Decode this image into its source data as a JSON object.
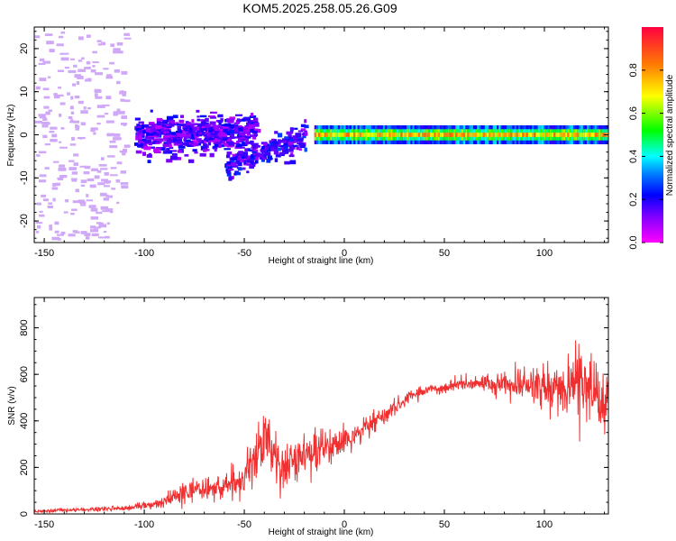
{
  "title": "KOM5.2025.258.05.26.G09",
  "chart_data": [
    {
      "type": "heatmap",
      "xlabel": "Height of straight line (km)",
      "ylabel": "Frequency (Hz)",
      "xlim": [
        -155,
        132
      ],
      "ylim": [
        -25,
        25
      ],
      "xticks": [
        -150,
        -100,
        -50,
        0,
        50,
        100
      ],
      "yticks": [
        -20,
        -10,
        0,
        10,
        20
      ],
      "colorbar": {
        "label": "Normalized spectral amplitude",
        "range": [
          0,
          1
        ],
        "ticks": [
          0.0,
          0.2,
          0.4,
          0.6,
          0.8
        ],
        "colormap": [
          "#ff00ff",
          "#8000ff",
          "#0000ff",
          "#00ffff",
          "#00ff00",
          "#ffff00",
          "#ff8000",
          "#ff0000"
        ]
      },
      "features": [
        {
          "x_range": [
            -155,
            -110
          ],
          "freq_range": [
            -24,
            24
          ],
          "amplitude": 0.05
        },
        {
          "x_range": [
            -105,
            -45
          ],
          "freq_range": [
            -4,
            5
          ],
          "amplitude": 0.2
        },
        {
          "x_range": [
            -60,
            -20
          ],
          "freq_range": [
            -9,
            0
          ],
          "amplitude": 0.22
        },
        {
          "x_range": [
            -15,
            132
          ],
          "freq_range": [
            -1,
            1
          ],
          "amplitude": 0.9
        }
      ]
    },
    {
      "type": "line",
      "xlabel": "Height of straight line (km)",
      "ylabel": "SNR (v/v)",
      "xlim": [
        -155,
        132
      ],
      "ylim": [
        0,
        930
      ],
      "xticks": [
        -150,
        -100,
        -50,
        0,
        50,
        100
      ],
      "yticks": [
        0,
        200,
        400,
        600,
        800
      ],
      "color": "#f03030",
      "envelope": {
        "x": [
          -155,
          -130,
          -110,
          -95,
          -80,
          -60,
          -50,
          -42,
          -38,
          -30,
          -20,
          -10,
          0,
          10,
          20,
          30,
          40,
          50,
          60,
          70,
          80,
          90,
          100,
          110,
          118,
          125,
          132
        ],
        "mean": [
          12,
          18,
          25,
          45,
          90,
          125,
          150,
          270,
          300,
          200,
          250,
          280,
          310,
          370,
          420,
          490,
          530,
          545,
          560,
          560,
          560,
          555,
          550,
          550,
          560,
          520,
          500
        ],
        "spread": [
          6,
          8,
          10,
          20,
          40,
          55,
          70,
          100,
          120,
          90,
          100,
          90,
          60,
          50,
          45,
          30,
          25,
          25,
          30,
          40,
          55,
          70,
          85,
          110,
          170,
          150,
          120
        ]
      }
    }
  ]
}
